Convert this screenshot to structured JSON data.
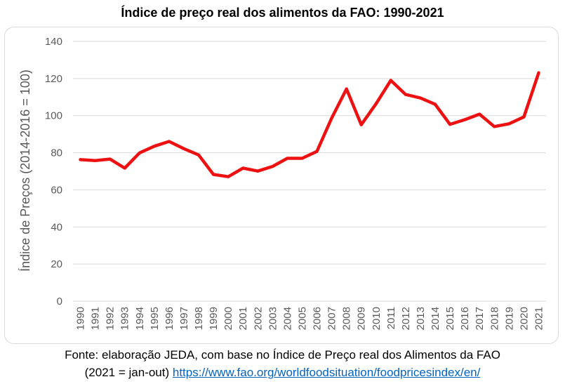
{
  "chart_data": {
    "type": "line",
    "title": "Índice de preço real dos alimentos da FAO: 1990-2021",
    "xlabel": "",
    "ylabel": "Índice de Preços (2014-2016 = 100)",
    "ylim": [
      0,
      140
    ],
    "yticks": [
      0,
      20,
      40,
      60,
      80,
      100,
      120,
      140
    ],
    "grid": "horizontal",
    "legend": "none",
    "x": [
      "1990",
      "1991",
      "1992",
      "1993",
      "1994",
      "1995",
      "1996",
      "1997",
      "1998",
      "1999",
      "2000",
      "2001",
      "2002",
      "2003",
      "2004",
      "2005",
      "2006",
      "2007",
      "2008",
      "2009",
      "2010",
      "2011",
      "2012",
      "2013",
      "2014",
      "2015",
      "2016",
      "2017",
      "2018",
      "2019",
      "2020",
      "2021"
    ],
    "series": [
      {
        "color": "#ee1111",
        "values": [
          76.3,
          75.8,
          76.6,
          71.7,
          79.9,
          83.5,
          86.1,
          82.2,
          78.8,
          68.3,
          67.1,
          71.7,
          70.1,
          72.6,
          77.0,
          77.0,
          80.7,
          98.7,
          114.4,
          95.1,
          106.4,
          119.0,
          111.4,
          109.5,
          106.1,
          95.3,
          97.8,
          100.8,
          94.1,
          95.6,
          99.3,
          123.1
        ]
      }
    ]
  },
  "source": {
    "line1": "Fonte: elaboração JEDA, com base no Índice de Preço real dos Alimentos da FAO",
    "line2_prefix": "(2021 = jan-out)",
    "link": "https://www.fao.org/worldfoodsituation/foodpricesindex/en/"
  }
}
